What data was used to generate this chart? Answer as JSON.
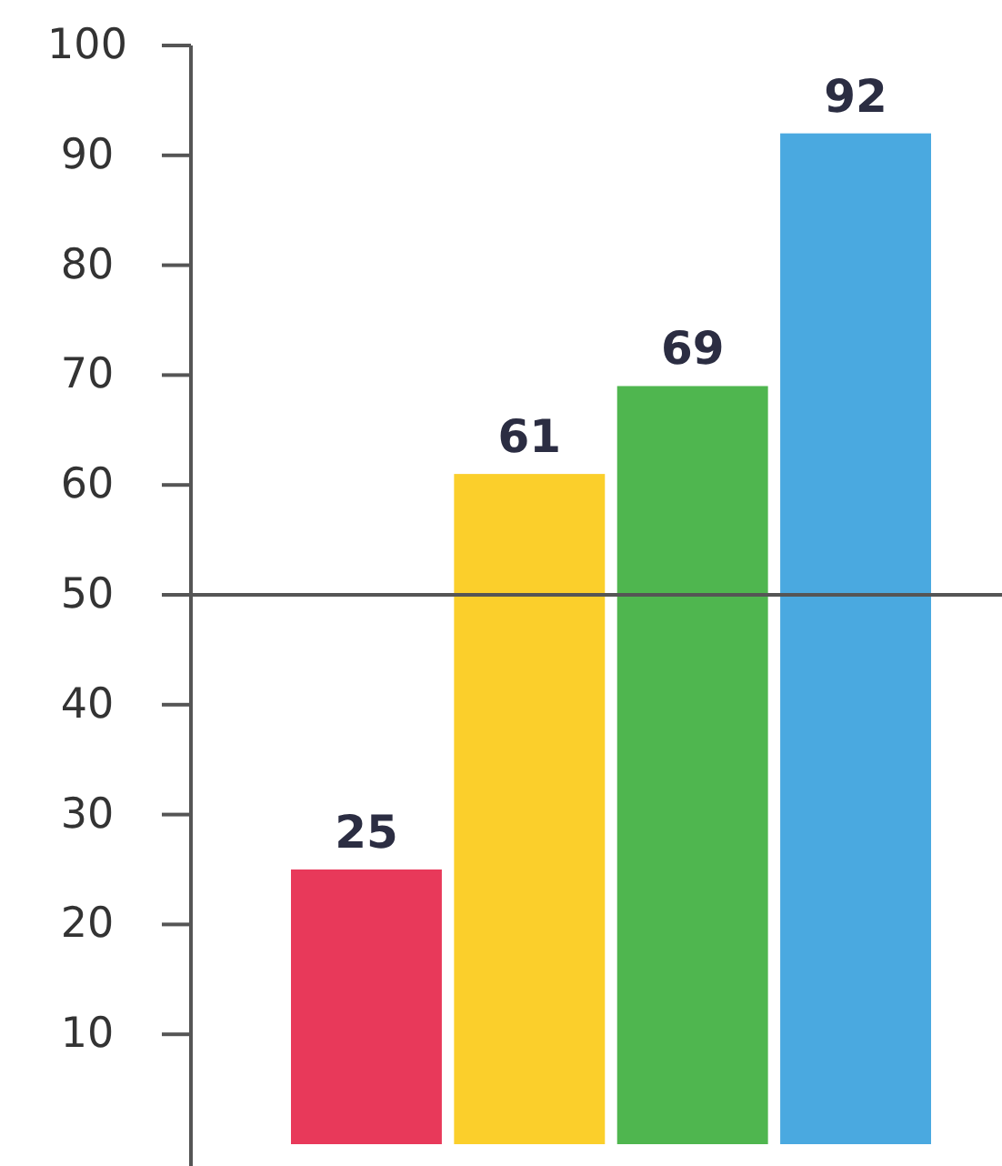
{
  "chart_data": {
    "type": "bar",
    "categories": [
      null,
      null,
      null,
      null
    ],
    "values": [
      25,
      61,
      69,
      92
    ],
    "colors": [
      "#e8395a",
      "#fbcf2b",
      "#4fb64f",
      "#4aa9e0"
    ],
    "ylim": [
      0,
      100
    ],
    "yticks": [
      10,
      20,
      30,
      40,
      50,
      60,
      70,
      80,
      90,
      100
    ],
    "data_labels": true,
    "grid": false,
    "ref_lines": [
      {
        "axis": "y",
        "value": 50,
        "color": "#555555"
      }
    ]
  }
}
